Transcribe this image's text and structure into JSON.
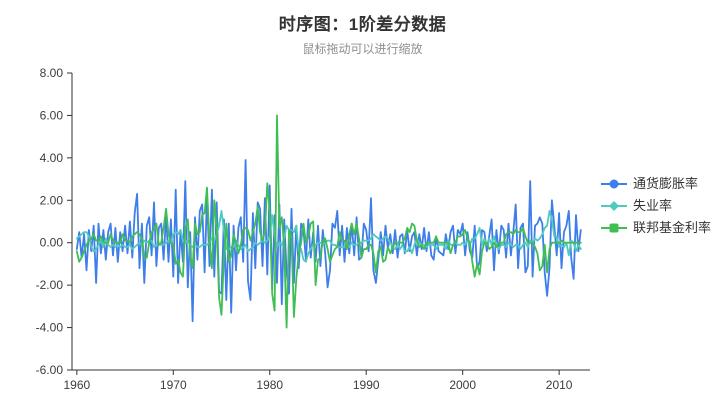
{
  "title": {
    "text": "时序图：1阶差分数据",
    "subtext": "鼠标拖动可以进行缩放"
  },
  "colors": {
    "inflation": "#3d7eea",
    "unemployment": "#50c9be",
    "fedfunds": "#3fbe53",
    "axis": "#333333",
    "tick_text": "#3c3c3c",
    "title_text": "#333333",
    "subtitle_text": "#8f8f8f",
    "background": "#ffffff"
  },
  "legend": {
    "position": "right",
    "items": [
      {
        "label": "通货膨胀率",
        "symbol": "circle",
        "color": "#3d7eea"
      },
      {
        "label": "失业率",
        "symbol": "diamond",
        "color": "#50c9be"
      },
      {
        "label": "联邦基金利率",
        "symbol": "rect",
        "color": "#3fbe53"
      }
    ]
  },
  "chart_data": {
    "type": "line",
    "title": "时序图：1阶差分数据",
    "subtitle": "鼠标拖动可以进行缩放",
    "xlabel": "",
    "ylabel": "",
    "grid": false,
    "legend_position": "right",
    "xlim": [
      1959.5,
      2013.2
    ],
    "ylim": [
      -6,
      8
    ],
    "x_ticks": [
      1960,
      1970,
      1980,
      1990,
      2000,
      2010
    ],
    "y_ticks": [
      8,
      6,
      4,
      2,
      0,
      -2,
      -4,
      -6
    ],
    "y_tick_labels": [
      "8.00",
      "6.00",
      "4.00",
      "2.00",
      "0.00",
      "-2.00",
      "-4.00",
      "-6.00"
    ],
    "x_start": 1960.0,
    "x_step": 0.25,
    "x_unit": "quarterly (year)",
    "series": [
      {
        "name": "通货膨胀率",
        "color": "#3d7eea",
        "symbol": "circle",
        "values": [
          -0.3,
          0.5,
          -0.7,
          0.4,
          -1.3,
          0.6,
          -0.4,
          0.8,
          -1.9,
          0.9,
          -0.5,
          0.6,
          -0.8,
          0.5,
          0.9,
          -0.6,
          0.7,
          -0.9,
          0.5,
          -0.4,
          0.8,
          -0.5,
          1.0,
          -0.7,
          1.4,
          2.3,
          -1.2,
          0.9,
          -1.9,
          0.8,
          1.2,
          -0.6,
          1.9,
          -1.1,
          0.7,
          0.9,
          -0.8,
          1.3,
          -0.9,
          1.1,
          -1.6,
          2.5,
          -1.9,
          0.6,
          -0.9,
          2.9,
          -2.1,
          0.5,
          -3.7,
          1.2,
          -0.8,
          1.5,
          1.8,
          -1.4,
          2.2,
          -1.1,
          2.5,
          -1.6,
          1.9,
          -2.3,
          -2.4,
          1.1,
          -2.7,
          0.9,
          -3.3,
          0.8,
          -1.3,
          0.7,
          1.2,
          -0.9,
          3.9,
          -1.8,
          -2.7,
          1.4,
          -1.2,
          1.9,
          1.6,
          -1.1,
          2.1,
          -1.5,
          2.7,
          -2.2,
          1.3,
          -1.9,
          1.8,
          -2.9,
          1.1,
          -1.4,
          -2.4,
          1.6,
          -1.9,
          0.8,
          -1.2,
          0.9,
          0.6,
          -0.8,
          1.1,
          -0.7,
          0.5,
          -0.9,
          0.8,
          -1.1,
          0.6,
          -0.5,
          -2.1,
          -1.3,
          0.9,
          0.7,
          1.5,
          -0.6,
          0.8,
          -0.9,
          0.7,
          -0.5,
          0.9,
          -0.6,
          1.2,
          -0.8,
          -0.7,
          0.9,
          0.6,
          -0.4,
          2.1,
          -1.3,
          -1.9,
          -0.8,
          0.5,
          -0.6,
          0.8,
          -0.3,
          0.4,
          -0.5,
          0.6,
          -0.7,
          0.3,
          0.4,
          -0.5,
          0.6,
          -0.4,
          0.3,
          0.5,
          -0.6,
          0.4,
          -0.3,
          0.7,
          -0.4,
          0.5,
          -0.6,
          -0.8,
          0.3,
          -0.4,
          -0.5,
          -0.6,
          0.4,
          -0.3,
          0.5,
          0.8,
          -0.5,
          0.6,
          0.4,
          0.9,
          -0.6,
          0.5,
          -0.4,
          -0.7,
          0.8,
          -1.2,
          -0.9,
          0.6,
          0.5,
          -0.4,
          0.3,
          1.1,
          -1.3,
          0.6,
          -0.5,
          0.8,
          0.6,
          -0.7,
          0.9,
          -0.6,
          0.5,
          1.8,
          -1.2,
          0.7,
          0.9,
          -1.4,
          -1.1,
          2.9,
          -1.6,
          0.8,
          0.9,
          1.2,
          0.9,
          -1.4,
          -2.5,
          -1.2,
          2.0,
          0.8,
          -0.6,
          1.4,
          -1.2,
          0.5,
          0.8,
          1.5,
          -0.7,
          -1.7,
          1.3,
          -0.4,
          0.6
        ]
      },
      {
        "name": "失业率",
        "color": "#50c9be",
        "symbol": "diamond",
        "values": [
          0.2,
          0.3,
          0.4,
          0.5,
          0.5,
          0.3,
          -0.2,
          -0.4,
          -0.3,
          -0.1,
          0.1,
          -0.2,
          0.2,
          -0.1,
          -0.2,
          -0.1,
          -0.2,
          -0.1,
          -0.2,
          -0.1,
          -0.2,
          -0.2,
          -0.1,
          -0.3,
          -0.2,
          -0.1,
          0.0,
          -0.1,
          0.1,
          0.0,
          0.1,
          0.1,
          -0.2,
          -0.1,
          -0.1,
          -0.1,
          -0.1,
          0.0,
          0.1,
          0.0,
          0.4,
          0.5,
          0.4,
          0.6,
          0.1,
          0.0,
          0.1,
          -0.1,
          -0.2,
          -0.1,
          -0.2,
          -0.2,
          -0.1,
          -0.1,
          -0.1,
          0.0,
          0.2,
          0.1,
          0.4,
          0.8,
          1.5,
          0.6,
          -0.3,
          -0.3,
          -0.2,
          -0.2,
          0.1,
          -0.1,
          -0.3,
          -0.2,
          -0.1,
          -0.4,
          -0.3,
          -0.2,
          0.0,
          -0.1,
          0.0,
          0.1,
          0.0,
          0.1,
          0.3,
          1.3,
          0.3,
          -0.2,
          0.0,
          -0.1,
          0.2,
          0.8,
          0.6,
          0.6,
          0.5,
          0.8,
          -0.4,
          -0.3,
          -0.8,
          -0.9,
          -0.5,
          -0.3,
          -0.1,
          -0.1,
          0.0,
          0.0,
          -0.1,
          0.0,
          0.1,
          0.1,
          -0.1,
          -0.1,
          -0.2,
          -0.2,
          -0.2,
          -0.2,
          -0.1,
          -0.2,
          0.0,
          -0.1,
          -0.1,
          0.0,
          0.0,
          0.1,
          0.1,
          0.1,
          0.2,
          0.4,
          0.3,
          0.2,
          0.1,
          0.2,
          0.3,
          0.2,
          0.0,
          -0.2,
          -0.3,
          -0.1,
          -0.3,
          -0.1,
          -0.4,
          -0.4,
          -0.2,
          -0.5,
          -0.1,
          0.2,
          0.0,
          -0.1,
          -0.1,
          -0.2,
          -0.1,
          -0.1,
          -0.1,
          -0.3,
          -0.1,
          -0.1,
          -0.1,
          -0.3,
          0.1,
          -0.1,
          -0.1,
          0.0,
          -0.1,
          -0.1,
          0.0,
          -0.1,
          0.1,
          -0.1,
          0.2,
          0.2,
          0.4,
          0.7,
          -0.1,
          0.2,
          -0.1,
          0.2,
          -0.1,
          0.3,
          -0.1,
          -0.3,
          -0.1,
          -0.1,
          -0.2,
          0.0,
          -0.1,
          -0.2,
          -0.1,
          -0.1,
          -0.3,
          -0.1,
          0.0,
          -0.2,
          0.1,
          0.0,
          0.2,
          0.1,
          0.2,
          0.4,
          0.7,
          0.8,
          1.5,
          1.1,
          0.3,
          0.3,
          -0.2,
          -0.1,
          -0.2,
          0.0,
          -0.6,
          0.1,
          0.0,
          -0.4,
          -0.1,
          -0.3
        ]
      },
      {
        "name": "联邦基金利率",
        "color": "#3fbe53",
        "symbol": "rect",
        "values": [
          -0.4,
          -0.9,
          -0.7,
          -0.4,
          -0.1,
          0.1,
          0.2,
          0.4,
          0.1,
          0.1,
          0.3,
          0.0,
          0.0,
          0.0,
          0.4,
          0.1,
          0.0,
          0.0,
          0.0,
          0.4,
          0.1,
          0.1,
          0.0,
          0.3,
          0.4,
          0.5,
          0.4,
          0.2,
          -0.7,
          -0.7,
          0.0,
          0.5,
          0.6,
          0.9,
          -0.1,
          0.0,
          0.7,
          1.6,
          0.4,
          0.0,
          -0.1,
          -1.0,
          -0.8,
          -1.4,
          -1.6,
          0.7,
          1.1,
          -0.6,
          -1.2,
          0.9,
          0.4,
          0.5,
          1.3,
          1.4,
          2.6,
          0.0,
          -1.2,
          2.0,
          0.7,
          -2.6,
          -3.4,
          -0.7,
          0.9,
          -0.9,
          -0.6,
          0.4,
          0.0,
          -0.5,
          -0.1,
          0.6,
          0.7,
          0.6,
          0.1,
          0.5,
          0.9,
          1.7,
          0.5,
          0.1,
          0.5,
          2.8,
          1.5,
          -2.4,
          -3.2,
          6.0,
          0.7,
          1.2,
          -0.2,
          -4.0,
          0.6,
          0.3,
          -3.5,
          -1.7,
          -0.6,
          0.0,
          0.9,
          0.0,
          0.3,
          0.9,
          1.0,
          -2.0,
          -0.8,
          -0.7,
          0.1,
          0.2,
          -0.3,
          -0.9,
          -0.6,
          -0.3,
          -0.2,
          0.5,
          0.1,
          0.1,
          -0.3,
          0.4,
          0.9,
          0.4,
          0.9,
          0.2,
          -0.7,
          -0.3,
          -0.3,
          -0.1,
          -0.1,
          -0.5,
          -1.4,
          -0.4,
          -0.2,
          -0.9,
          -0.8,
          -0.2,
          -0.5,
          -0.2,
          0.0,
          0.0,
          0.0,
          0.0,
          0.2,
          0.7,
          0.5,
          0.9,
          0.8,
          0.1,
          -0.2,
          -0.1,
          -0.3,
          0.0,
          0.0,
          0.0,
          0.0,
          0.3,
          0.0,
          0.0,
          0.0,
          0.0,
          0.0,
          -0.5,
          -0.1,
          0.0,
          0.3,
          0.3,
          0.4,
          0.6,
          0.2,
          0.0,
          -0.9,
          -1.6,
          -1.0,
          -1.5,
          -0.4,
          0.0,
          0.0,
          -0.3,
          -0.2,
          0.0,
          -0.2,
          0.0,
          0.0,
          0.0,
          0.4,
          0.5,
          0.5,
          0.4,
          0.6,
          0.5,
          0.5,
          0.7,
          0.3,
          0.0,
          0.0,
          0.0,
          -0.2,
          -0.5,
          -1.3,
          -1.1,
          -0.1,
          -1.4,
          -0.3,
          0.0,
          0.0,
          0.0,
          0.0,
          0.1,
          0.0,
          0.0,
          0.0,
          0.0,
          0.0,
          0.0,
          0.0,
          0.0
        ]
      }
    ]
  },
  "plot_geometry_note": "y axis ticks every 2.00 from -6.00 to 8.00; x axis ticks every decade 1960-2010; no gridlines; white background"
}
